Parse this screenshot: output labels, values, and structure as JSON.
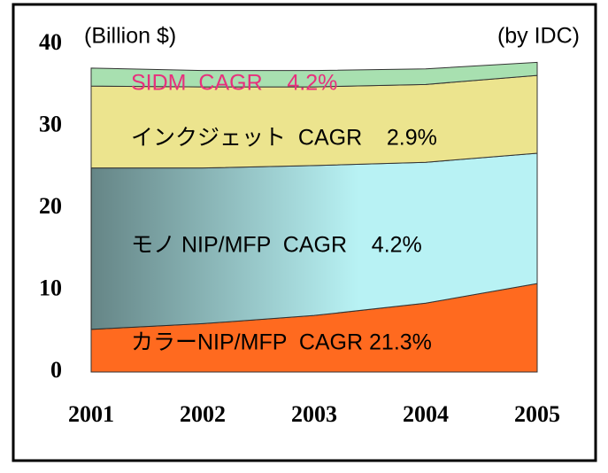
{
  "chart_data": {
    "type": "stacked_area",
    "unit_label": "(Billion $)",
    "source": "(by IDC)",
    "categories": [
      "2001",
      "2002",
      "2003",
      "2004",
      "2005"
    ],
    "series": [
      {
        "name": "カラーNIP/MFP  CAGR 21.3%",
        "color": "#ff6a1f",
        "values": [
          5.2,
          5.9,
          6.9,
          8.4,
          10.8
        ]
      },
      {
        "name": "モノ NIP/MFP  CAGR    4.2%",
        "color": "#b8f2f4",
        "values": [
          19.7,
          19.0,
          18.3,
          17.2,
          15.9
        ]
      },
      {
        "name": "インクジェット  CAGR    2.9%",
        "color": "#ece48e",
        "values": [
          10.0,
          9.9,
          9.6,
          9.5,
          9.5
        ]
      },
      {
        "name": "SIDM  CAGR    4.2%",
        "color": "#a8e0b0",
        "values": [
          2.2,
          2.0,
          2.0,
          1.9,
          1.6
        ]
      }
    ],
    "label_colors": [
      "#000000",
      "#000000",
      "#000000",
      "#e8307c"
    ],
    "ylim": [
      0,
      40
    ],
    "yticks": [
      0,
      10,
      20,
      30,
      40
    ]
  }
}
